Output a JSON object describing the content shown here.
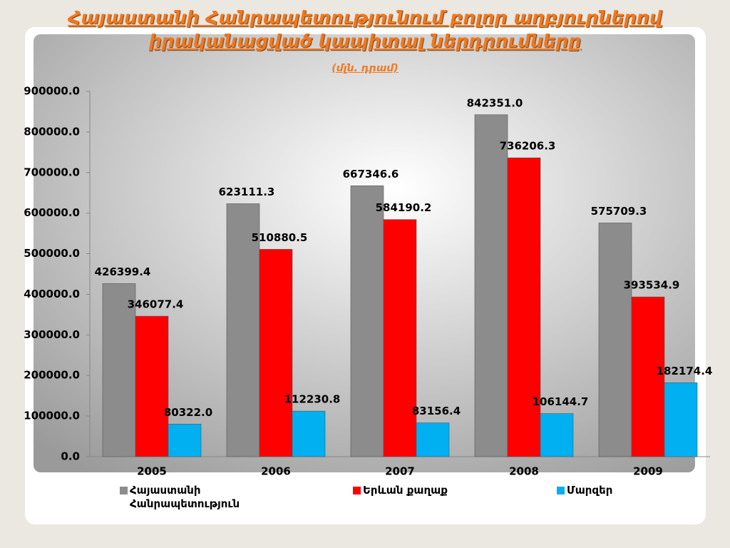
{
  "chart_data": {
    "type": "bar",
    "title": "Հայաստանի Հանրապետությունում բոլոր աղբյուրներով իրականացված կապիտալ ներդրումները",
    "subtitle": "(մլն. դրամ)",
    "categories": [
      "2005",
      "2006",
      "2007",
      "2008",
      "2009"
    ],
    "series": [
      {
        "name": "Հայաստանի Հանրապետություն",
        "color": "#8c8c8c",
        "values": [
          426399.4,
          623111.3,
          667346.6,
          842351.0,
          575709.3
        ],
        "value_labels": [
          "426399.4",
          "623111.3",
          "667346.6",
          "842351.0",
          "575709.3"
        ]
      },
      {
        "name": "Երևան քաղաք",
        "color": "#ff0000",
        "values": [
          346077.4,
          510880.5,
          584190.2,
          736206.3,
          393534.9
        ],
        "value_labels": [
          "346077.4",
          "510880.5",
          "584190.2",
          "736206.3",
          "393534.9"
        ]
      },
      {
        "name": "Մարզեր",
        "color": "#00b0f0",
        "values": [
          80322.0,
          112230.8,
          83156.4,
          106144.7,
          182174.4
        ],
        "value_labels": [
          "80322.0",
          "112230.8",
          "83156.4",
          "106144.7",
          "182174.4"
        ]
      }
    ],
    "ylim": [
      0,
      900000
    ],
    "yticks": [
      {
        "value": 0,
        "label": "0.0"
      },
      {
        "value": 100000,
        "label": "100000.0"
      },
      {
        "value": 200000,
        "label": "200000.0"
      },
      {
        "value": 300000,
        "label": "300000.0"
      },
      {
        "value": 400000,
        "label": "400000.0"
      },
      {
        "value": 500000,
        "label": "500000.0"
      },
      {
        "value": 600000,
        "label": "600000.0"
      },
      {
        "value": 700000,
        "label": "700000.0"
      },
      {
        "value": 800000,
        "label": "800000.0"
      },
      {
        "value": 900000,
        "label": "900000.0"
      }
    ],
    "legend": "bottom",
    "grid": false
  }
}
